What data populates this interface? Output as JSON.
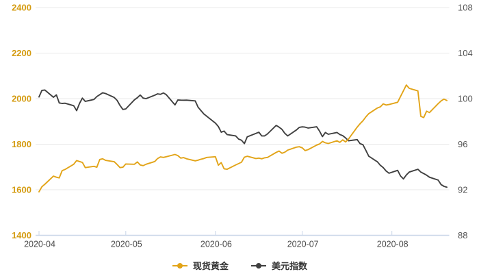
{
  "chart_data": {
    "type": "line",
    "title": "",
    "grid": true,
    "legend_position": "bottom",
    "x_axis": {
      "tick_labels": [
        "2020-04",
        "2020-05",
        "2020-06",
        "2020-07",
        "2020-08"
      ],
      "tick_dates": [
        "2020-04-01",
        "2020-05-01",
        "2020-06-01",
        "2020-07-01",
        "2020-08-01"
      ],
      "label_color": "#4a4a4a",
      "axis_line_color": "#c9d6e8"
    },
    "left_axis": {
      "ticks": [
        1400,
        1600,
        1800,
        2000,
        2200,
        2400
      ],
      "range": [
        1400,
        2400
      ],
      "color": "#d49b10",
      "series": "现货黄金"
    },
    "right_axis": {
      "ticks": [
        88,
        92,
        96,
        100,
        104,
        108
      ],
      "range": [
        88,
        108
      ],
      "color": "#555555",
      "series": "美元指数"
    },
    "gridline_color": "#e8e8e8",
    "dates": [
      "2020-04-01",
      "2020-04-02",
      "2020-04-03",
      "2020-04-06",
      "2020-04-07",
      "2020-04-08",
      "2020-04-09",
      "2020-04-10",
      "2020-04-13",
      "2020-04-14",
      "2020-04-15",
      "2020-04-16",
      "2020-04-17",
      "2020-04-20",
      "2020-04-21",
      "2020-04-22",
      "2020-04-23",
      "2020-04-24",
      "2020-04-27",
      "2020-04-28",
      "2020-04-29",
      "2020-04-30",
      "2020-05-01",
      "2020-05-04",
      "2020-05-05",
      "2020-05-06",
      "2020-05-07",
      "2020-05-08",
      "2020-05-11",
      "2020-05-12",
      "2020-05-13",
      "2020-05-14",
      "2020-05-15",
      "2020-05-18",
      "2020-05-19",
      "2020-05-20",
      "2020-05-21",
      "2020-05-22",
      "2020-05-25",
      "2020-05-26",
      "2020-05-27",
      "2020-05-28",
      "2020-05-29",
      "2020-06-01",
      "2020-06-02",
      "2020-06-03",
      "2020-06-04",
      "2020-06-05",
      "2020-06-08",
      "2020-06-09",
      "2020-06-10",
      "2020-06-11",
      "2020-06-12",
      "2020-06-15",
      "2020-06-16",
      "2020-06-17",
      "2020-06-18",
      "2020-06-19",
      "2020-06-22",
      "2020-06-23",
      "2020-06-24",
      "2020-06-25",
      "2020-06-26",
      "2020-06-29",
      "2020-06-30",
      "2020-07-01",
      "2020-07-02",
      "2020-07-03",
      "2020-07-06",
      "2020-07-07",
      "2020-07-08",
      "2020-07-09",
      "2020-07-10",
      "2020-07-13",
      "2020-07-14",
      "2020-07-15",
      "2020-07-16",
      "2020-07-17",
      "2020-07-20",
      "2020-07-21",
      "2020-07-22",
      "2020-07-23",
      "2020-07-24",
      "2020-07-27",
      "2020-07-28",
      "2020-07-29",
      "2020-07-30",
      "2020-07-31",
      "2020-08-03",
      "2020-08-04",
      "2020-08-05",
      "2020-08-06",
      "2020-08-07",
      "2020-08-10",
      "2020-08-11",
      "2020-08-12",
      "2020-08-13",
      "2020-08-14",
      "2020-08-17",
      "2020-08-18",
      "2020-08-19",
      "2020-08-20"
    ],
    "series": [
      {
        "name": "现货黄金",
        "axis": "left",
        "color": "#e2a418",
        "values": [
          1591,
          1613,
          1624,
          1660,
          1655,
          1652,
          1684,
          1689,
          1712,
          1728,
          1724,
          1720,
          1697,
          1703,
          1699,
          1733,
          1736,
          1729,
          1723,
          1711,
          1697,
          1699,
          1713,
          1712,
          1722,
          1709,
          1706,
          1712,
          1724,
          1737,
          1744,
          1742,
          1745,
          1755,
          1750,
          1739,
          1741,
          1736,
          1727,
          1730,
          1734,
          1737,
          1742,
          1745,
          1708,
          1719,
          1692,
          1690,
          1709,
          1715,
          1721,
          1743,
          1747,
          1737,
          1739,
          1736,
          1740,
          1742,
          1764,
          1770,
          1760,
          1765,
          1774,
          1787,
          1789,
          1784,
          1772,
          1776,
          1796,
          1801,
          1812,
          1806,
          1803,
          1815,
          1808,
          1819,
          1810,
          1823,
          1875,
          1890,
          1903,
          1920,
          1934,
          1959,
          1964,
          1977,
          1972,
          1974,
          1984,
          2010,
          2035,
          2060,
          2045,
          2034,
          1922,
          1917,
          1945,
          1939,
          1978,
          1990,
          1998,
          1992
        ]
      },
      {
        "name": "美元指数",
        "axis": "right",
        "color": "#3f3f3f",
        "values": [
          100.15,
          100.72,
          100.76,
          100.12,
          100.33,
          99.62,
          99.58,
          99.6,
          99.38,
          98.95,
          99.58,
          100.05,
          99.76,
          99.93,
          100.18,
          100.35,
          100.52,
          100.45,
          100.1,
          99.85,
          99.4,
          99.05,
          99.1,
          99.9,
          100.08,
          100.32,
          100.05,
          100.0,
          100.3,
          100.42,
          100.38,
          100.5,
          100.35,
          99.45,
          99.88,
          99.87,
          99.86,
          99.87,
          99.8,
          99.25,
          98.95,
          98.65,
          98.45,
          97.85,
          97.55,
          97.05,
          97.15,
          96.85,
          96.73,
          96.45,
          96.35,
          96.05,
          96.65,
          96.95,
          97.05,
          96.73,
          96.73,
          96.9,
          97.65,
          97.5,
          97.3,
          96.95,
          96.73,
          97.25,
          97.48,
          97.52,
          97.5,
          97.42,
          97.53,
          97.15,
          96.67,
          97.03,
          96.87,
          97.03,
          96.85,
          96.75,
          96.55,
          96.3,
          96.4,
          96.05,
          95.95,
          95.45,
          94.95,
          94.45,
          94.15,
          93.95,
          93.65,
          93.45,
          93.7,
          93.2,
          92.95,
          93.3,
          93.55,
          93.8,
          93.55,
          93.42,
          93.28,
          93.1,
          92.85,
          92.45,
          92.3,
          92.22
        ]
      }
    ]
  }
}
